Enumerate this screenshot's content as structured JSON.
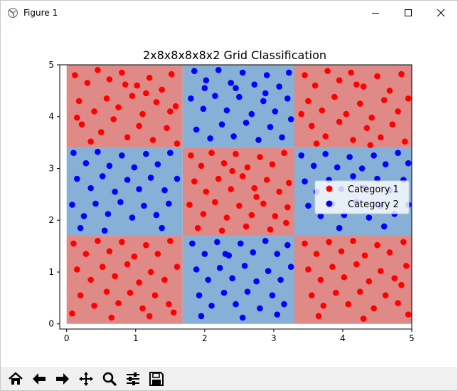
{
  "window": {
    "title": "Figure 1"
  },
  "toolbar": {
    "buttons": [
      {
        "name": "home-button",
        "icon": "home-icon"
      },
      {
        "name": "back-button",
        "icon": "arrow-left-icon"
      },
      {
        "name": "forward-button",
        "icon": "arrow-right-icon"
      },
      {
        "name": "pan-button",
        "icon": "move-icon"
      },
      {
        "name": "zoom-button",
        "icon": "magnifier-icon"
      },
      {
        "name": "configure-button",
        "icon": "sliders-icon"
      },
      {
        "name": "save-button",
        "icon": "floppy-disk-icon"
      }
    ]
  },
  "chart_data": {
    "type": "scatter",
    "title": "2x8x8x8x8x2 Grid Classification",
    "xlabel": "",
    "ylabel": "",
    "xlim": [
      -0.1,
      5.0
    ],
    "ylim": [
      -0.1,
      5.0
    ],
    "xticks": [
      "0",
      "1",
      "2",
      "3",
      "4",
      "5"
    ],
    "yticks": [
      "0",
      "1",
      "2",
      "3",
      "4",
      "5"
    ],
    "grid": false,
    "legend": {
      "position": "center-right",
      "entries": [
        "Category 1",
        "Category 2"
      ]
    },
    "colors": {
      "category1_point": "#ff0000",
      "category2_point": "#0000ff",
      "category1_region": "#e08a88",
      "category2_region": "#86b0d6"
    },
    "regions": {
      "category1": [
        {
          "x": [
            0.0,
            1.68
          ],
          "y": [
            3.4,
            5.0
          ]
        },
        {
          "x": [
            3.3,
            5.0
          ],
          "y": [
            3.4,
            5.0
          ]
        },
        {
          "x": [
            1.68,
            3.3
          ],
          "y": [
            1.7,
            3.4
          ]
        },
        {
          "x": [
            0.0,
            1.68
          ],
          "y": [
            0.0,
            1.7
          ]
        },
        {
          "x": [
            3.3,
            5.0
          ],
          "y": [
            0.0,
            1.7
          ]
        }
      ],
      "category2": [
        {
          "x": [
            1.68,
            3.3
          ],
          "y": [
            3.4,
            5.0
          ]
        },
        {
          "x": [
            0.0,
            1.68
          ],
          "y": [
            1.7,
            3.4
          ]
        },
        {
          "x": [
            3.3,
            5.0
          ],
          "y": [
            1.7,
            3.4
          ]
        },
        {
          "x": [
            1.68,
            3.3
          ],
          "y": [
            0.0,
            1.7
          ]
        }
      ]
    },
    "series": [
      {
        "name": "Category 1",
        "points": [
          [
            0.12,
            4.8
          ],
          [
            0.3,
            4.65
          ],
          [
            0.45,
            4.9
          ],
          [
            0.62,
            4.72
          ],
          [
            0.8,
            4.85
          ],
          [
            1.02,
            4.6
          ],
          [
            1.2,
            4.75
          ],
          [
            1.38,
            4.52
          ],
          [
            1.52,
            4.82
          ],
          [
            0.18,
            4.3
          ],
          [
            0.4,
            4.1
          ],
          [
            0.58,
            4.35
          ],
          [
            0.75,
            4.18
          ],
          [
            0.95,
            4.4
          ],
          [
            1.1,
            4.05
          ],
          [
            1.3,
            4.28
          ],
          [
            1.5,
            4.1
          ],
          [
            0.22,
            3.85
          ],
          [
            0.5,
            3.7
          ],
          [
            0.68,
            3.95
          ],
          [
            0.88,
            3.6
          ],
          [
            1.05,
            3.82
          ],
          [
            1.25,
            3.55
          ],
          [
            1.45,
            3.78
          ],
          [
            1.6,
            3.48
          ],
          [
            0.35,
            3.52
          ],
          [
            0.15,
            3.98
          ],
          [
            0.85,
            4.62
          ],
          [
            1.15,
            4.45
          ],
          [
            1.58,
            4.2
          ],
          [
            3.45,
            4.8
          ],
          [
            3.6,
            4.6
          ],
          [
            3.78,
            4.88
          ],
          [
            3.95,
            4.7
          ],
          [
            4.12,
            4.85
          ],
          [
            4.3,
            4.58
          ],
          [
            4.5,
            4.78
          ],
          [
            4.68,
            4.5
          ],
          [
            4.85,
            4.82
          ],
          [
            3.5,
            4.3
          ],
          [
            3.7,
            4.12
          ],
          [
            3.88,
            4.38
          ],
          [
            4.05,
            4.05
          ],
          [
            4.25,
            4.25
          ],
          [
            4.42,
            3.98
          ],
          [
            4.6,
            4.32
          ],
          [
            4.8,
            4.1
          ],
          [
            3.55,
            3.82
          ],
          [
            3.75,
            3.62
          ],
          [
            3.95,
            3.9
          ],
          [
            4.15,
            3.55
          ],
          [
            4.35,
            3.78
          ],
          [
            4.55,
            3.6
          ],
          [
            4.72,
            3.85
          ],
          [
            4.9,
            3.52
          ],
          [
            3.62,
            3.48
          ],
          [
            4.2,
            4.62
          ],
          [
            4.95,
            4.35
          ],
          [
            3.4,
            4.05
          ],
          [
            4.4,
            3.45
          ],
          [
            1.8,
            3.25
          ],
          [
            1.95,
            3.05
          ],
          [
            2.1,
            3.3
          ],
          [
            2.28,
            3.1
          ],
          [
            2.45,
            3.28
          ],
          [
            2.62,
            3.02
          ],
          [
            2.8,
            3.22
          ],
          [
            2.98,
            3.08
          ],
          [
            3.15,
            3.3
          ],
          [
            1.85,
            2.75
          ],
          [
            2.02,
            2.55
          ],
          [
            2.2,
            2.8
          ],
          [
            2.38,
            2.6
          ],
          [
            2.55,
            2.85
          ],
          [
            2.72,
            2.62
          ],
          [
            2.9,
            2.78
          ],
          [
            3.08,
            2.55
          ],
          [
            3.22,
            2.72
          ],
          [
            1.78,
            2.3
          ],
          [
            1.98,
            2.12
          ],
          [
            2.15,
            2.35
          ],
          [
            2.32,
            2.05
          ],
          [
            2.5,
            2.28
          ],
          [
            2.68,
            2.1
          ],
          [
            2.85,
            2.32
          ],
          [
            3.02,
            2.08
          ],
          [
            3.2,
            2.25
          ],
          [
            1.9,
            1.85
          ],
          [
            2.25,
            1.8
          ],
          [
            2.6,
            1.88
          ],
          [
            2.95,
            1.82
          ],
          [
            3.18,
            1.95
          ],
          [
            2.4,
            2.95
          ],
          [
            2.75,
            2.45
          ],
          [
            0.1,
            1.55
          ],
          [
            0.28,
            1.35
          ],
          [
            0.45,
            1.6
          ],
          [
            0.62,
            1.4
          ],
          [
            0.8,
            1.58
          ],
          [
            0.98,
            1.3
          ],
          [
            1.15,
            1.52
          ],
          [
            1.32,
            1.35
          ],
          [
            1.5,
            1.6
          ],
          [
            0.15,
            1.05
          ],
          [
            0.35,
            0.85
          ],
          [
            0.52,
            1.1
          ],
          [
            0.7,
            0.92
          ],
          [
            0.88,
            1.15
          ],
          [
            1.05,
            0.8
          ],
          [
            1.22,
            1.0
          ],
          [
            1.42,
            0.85
          ],
          [
            1.6,
            1.1
          ],
          [
            0.2,
            0.55
          ],
          [
            0.4,
            0.35
          ],
          [
            0.58,
            0.62
          ],
          [
            0.75,
            0.4
          ],
          [
            0.92,
            0.6
          ],
          [
            1.1,
            0.3
          ],
          [
            1.28,
            0.55
          ],
          [
            1.48,
            0.38
          ],
          [
            0.08,
            0.2
          ],
          [
            0.65,
            0.12
          ],
          [
            1.2,
            0.15
          ],
          [
            1.55,
            0.22
          ],
          [
            3.45,
            1.55
          ],
          [
            3.62,
            1.35
          ],
          [
            3.8,
            1.58
          ],
          [
            3.98,
            1.4
          ],
          [
            4.15,
            1.6
          ],
          [
            4.32,
            1.32
          ],
          [
            4.5,
            1.52
          ],
          [
            4.68,
            1.38
          ],
          [
            4.88,
            1.58
          ],
          [
            3.5,
            1.05
          ],
          [
            3.68,
            0.85
          ],
          [
            3.85,
            1.1
          ],
          [
            4.02,
            0.9
          ],
          [
            4.2,
            1.15
          ],
          [
            4.38,
            0.82
          ],
          [
            4.55,
            1.02
          ],
          [
            4.75,
            0.88
          ],
          [
            4.92,
            1.12
          ],
          [
            3.55,
            0.55
          ],
          [
            3.72,
            0.35
          ],
          [
            3.9,
            0.6
          ],
          [
            4.08,
            0.38
          ],
          [
            4.25,
            0.62
          ],
          [
            4.45,
            0.3
          ],
          [
            4.62,
            0.55
          ],
          [
            4.8,
            0.4
          ],
          [
            4.95,
            0.18
          ],
          [
            3.65,
            0.15
          ],
          [
            4.3,
            0.1
          ],
          [
            4.85,
            0.75
          ]
        ]
      },
      {
        "name": "Category 2",
        "points": [
          [
            1.85,
            4.88
          ],
          [
            2.02,
            4.7
          ],
          [
            2.2,
            4.9
          ],
          [
            2.38,
            4.65
          ],
          [
            2.55,
            4.85
          ],
          [
            2.72,
            4.62
          ],
          [
            2.9,
            4.8
          ],
          [
            3.08,
            4.58
          ],
          [
            3.22,
            4.85
          ],
          [
            1.8,
            4.35
          ],
          [
            1.98,
            4.15
          ],
          [
            2.15,
            4.4
          ],
          [
            2.32,
            4.12
          ],
          [
            2.5,
            4.38
          ],
          [
            2.68,
            4.05
          ],
          [
            2.85,
            4.3
          ],
          [
            3.02,
            4.1
          ],
          [
            3.2,
            4.35
          ],
          [
            1.88,
            3.75
          ],
          [
            2.08,
            3.58
          ],
          [
            2.25,
            3.85
          ],
          [
            2.42,
            3.62
          ],
          [
            2.6,
            3.88
          ],
          [
            2.78,
            3.55
          ],
          [
            2.95,
            3.8
          ],
          [
            3.12,
            3.6
          ],
          [
            2.0,
            4.55
          ],
          [
            2.45,
            4.55
          ],
          [
            2.88,
            4.45
          ],
          [
            3.25,
            3.95
          ],
          [
            0.1,
            3.3
          ],
          [
            0.28,
            3.1
          ],
          [
            0.45,
            3.32
          ],
          [
            0.62,
            3.05
          ],
          [
            0.8,
            3.25
          ],
          [
            0.98,
            3.02
          ],
          [
            1.15,
            3.28
          ],
          [
            1.32,
            3.08
          ],
          [
            1.5,
            3.3
          ],
          [
            0.15,
            2.8
          ],
          [
            0.35,
            2.62
          ],
          [
            0.52,
            2.85
          ],
          [
            0.7,
            2.55
          ],
          [
            0.88,
            2.78
          ],
          [
            1.05,
            2.6
          ],
          [
            1.22,
            2.82
          ],
          [
            1.42,
            2.58
          ],
          [
            1.6,
            2.8
          ],
          [
            0.08,
            2.3
          ],
          [
            0.25,
            2.08
          ],
          [
            0.42,
            2.32
          ],
          [
            0.6,
            2.12
          ],
          [
            0.78,
            2.35
          ],
          [
            0.95,
            2.05
          ],
          [
            1.12,
            2.28
          ],
          [
            1.3,
            2.1
          ],
          [
            1.48,
            2.32
          ],
          [
            0.2,
            1.85
          ],
          [
            0.55,
            1.8
          ],
          [
            1.38,
            1.85
          ],
          [
            3.4,
            3.25
          ],
          [
            3.58,
            3.05
          ],
          [
            3.75,
            3.28
          ],
          [
            3.92,
            3.02
          ],
          [
            4.1,
            3.22
          ],
          [
            4.28,
            3.0
          ],
          [
            4.45,
            3.25
          ],
          [
            4.62,
            3.08
          ],
          [
            4.8,
            3.3
          ],
          [
            4.95,
            3.1
          ],
          [
            3.45,
            2.75
          ],
          [
            3.62,
            2.55
          ],
          [
            3.8,
            2.78
          ],
          [
            3.98,
            2.6
          ],
          [
            4.15,
            2.85
          ],
          [
            4.32,
            2.62
          ],
          [
            4.5,
            2.8
          ],
          [
            4.68,
            2.58
          ],
          [
            4.88,
            2.78
          ],
          [
            3.5,
            2.28
          ],
          [
            3.68,
            2.08
          ],
          [
            3.85,
            2.32
          ],
          [
            4.02,
            2.1
          ],
          [
            4.2,
            2.35
          ],
          [
            4.38,
            2.05
          ],
          [
            4.55,
            2.28
          ],
          [
            4.75,
            2.12
          ],
          [
            4.95,
            2.3
          ],
          [
            3.95,
            1.85
          ],
          [
            4.6,
            1.88
          ],
          [
            1.82,
            1.55
          ],
          [
            2.0,
            1.35
          ],
          [
            2.18,
            1.58
          ],
          [
            2.35,
            1.32
          ],
          [
            2.52,
            1.55
          ],
          [
            2.7,
            1.38
          ],
          [
            2.88,
            1.6
          ],
          [
            3.05,
            1.35
          ],
          [
            3.2,
            1.52
          ],
          [
            1.88,
            1.05
          ],
          [
            2.05,
            0.85
          ],
          [
            2.22,
            1.08
          ],
          [
            2.4,
            0.88
          ],
          [
            2.58,
            1.12
          ],
          [
            2.75,
            0.82
          ],
          [
            2.92,
            1.02
          ],
          [
            3.1,
            0.85
          ],
          [
            3.25,
            1.1
          ],
          [
            1.92,
            0.55
          ],
          [
            2.1,
            0.35
          ],
          [
            2.28,
            0.6
          ],
          [
            2.45,
            0.38
          ],
          [
            2.62,
            0.62
          ],
          [
            2.8,
            0.3
          ],
          [
            2.98,
            0.55
          ],
          [
            3.15,
            0.38
          ],
          [
            1.95,
            0.15
          ],
          [
            2.55,
            0.12
          ],
          [
            3.05,
            0.18
          ],
          [
            2.3,
            1.35
          ]
        ]
      }
    ]
  }
}
